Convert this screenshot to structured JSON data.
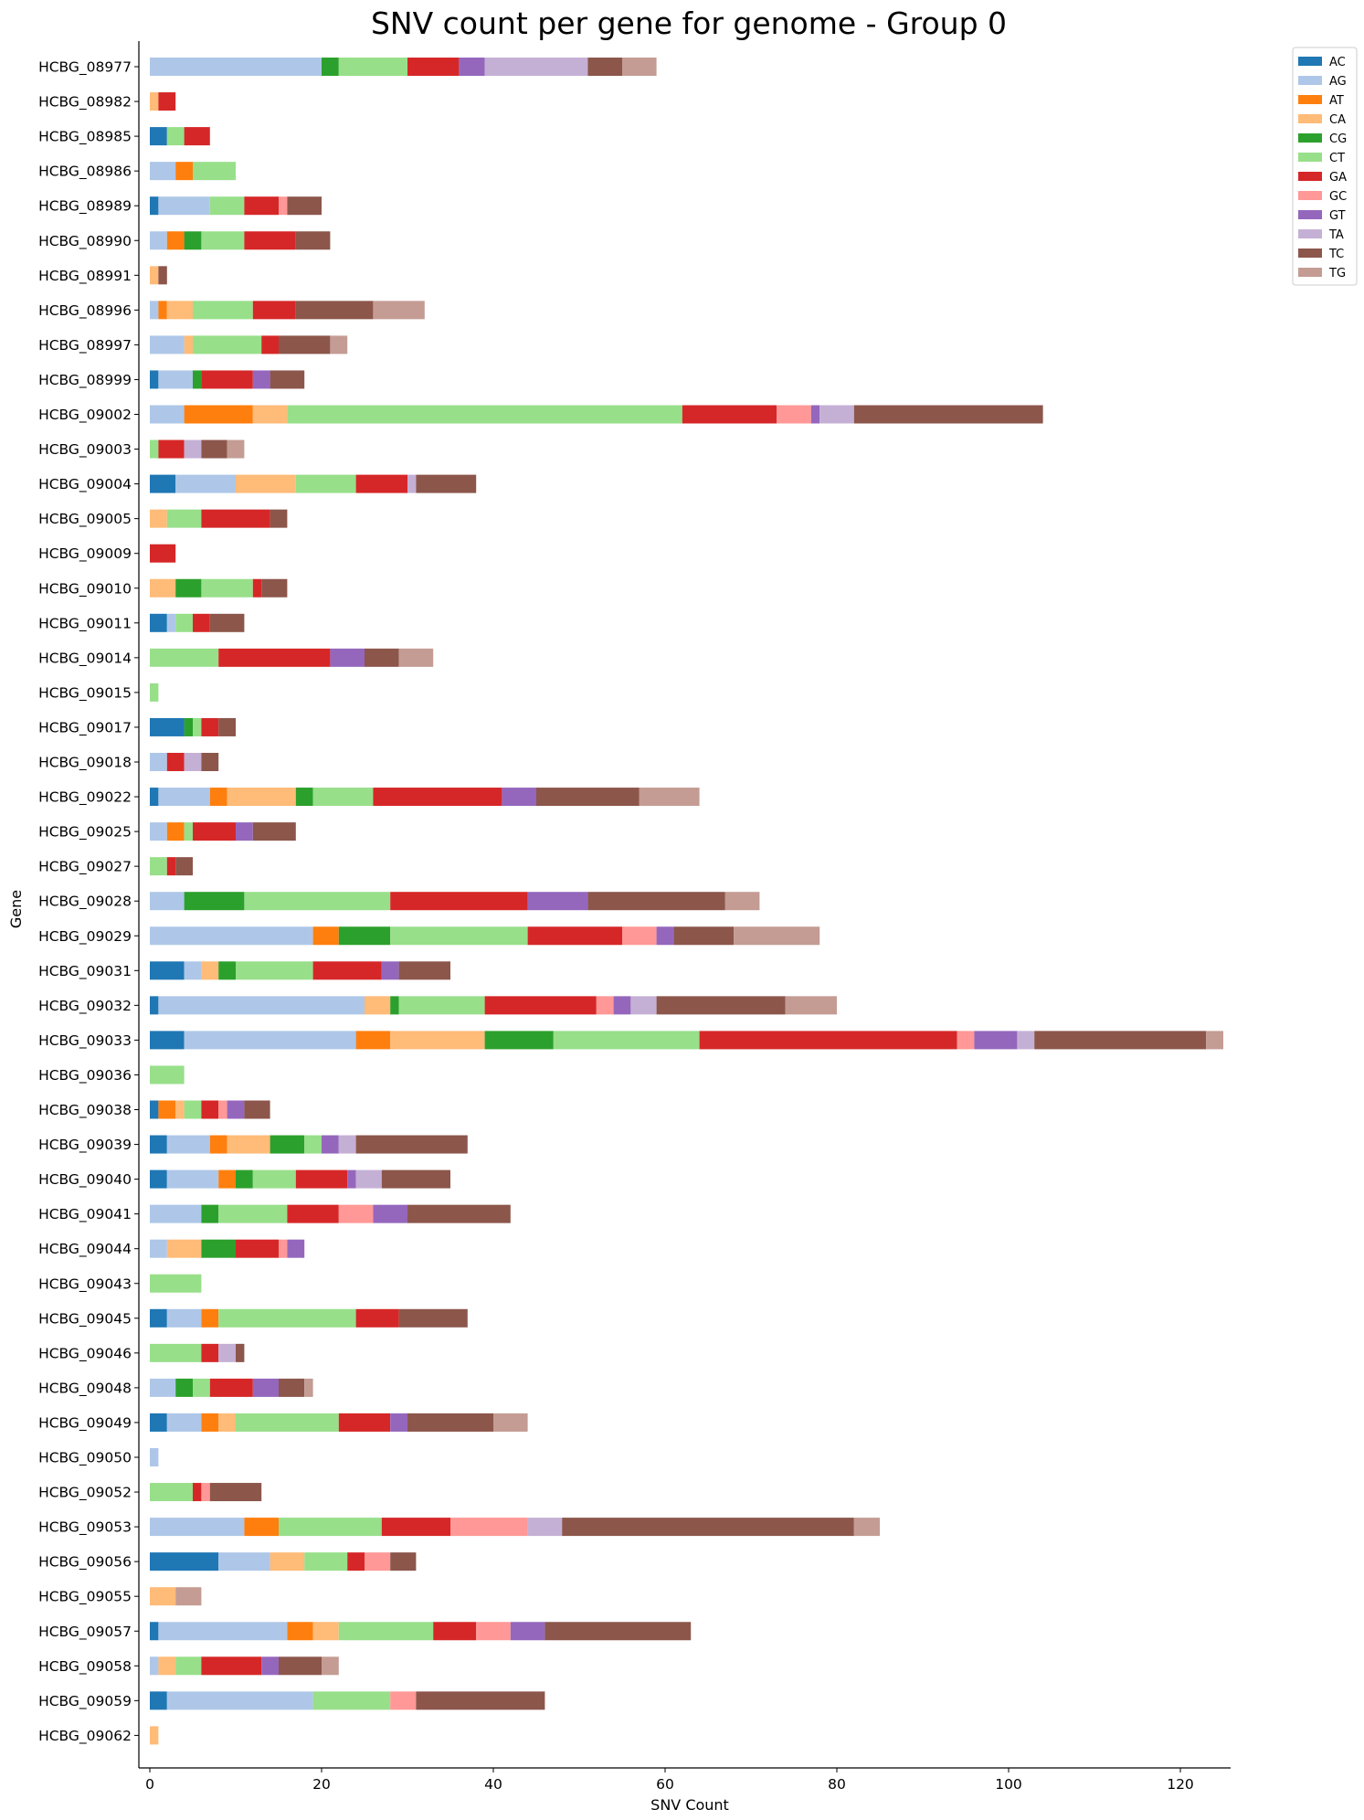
{
  "chart_data": {
    "type": "bar",
    "orientation": "horizontal",
    "stacked": true,
    "title": "SNV count per gene for genome - Group 0",
    "xlabel": "SNV Count",
    "ylabel": "Gene",
    "xlim": [
      0,
      126
    ],
    "xticks": [
      0,
      20,
      40,
      60,
      80,
      100,
      120
    ],
    "grid": false,
    "legend_position": "top-right",
    "categories": [
      "HCBG_08977",
      "HCBG_08982",
      "HCBG_08985",
      "HCBG_08986",
      "HCBG_08989",
      "HCBG_08990",
      "HCBG_08991",
      "HCBG_08996",
      "HCBG_08997",
      "HCBG_08999",
      "HCBG_09002",
      "HCBG_09003",
      "HCBG_09004",
      "HCBG_09005",
      "HCBG_09009",
      "HCBG_09010",
      "HCBG_09011",
      "HCBG_09014",
      "HCBG_09015",
      "HCBG_09017",
      "HCBG_09018",
      "HCBG_09022",
      "HCBG_09025",
      "HCBG_09027",
      "HCBG_09028",
      "HCBG_09029",
      "HCBG_09031",
      "HCBG_09032",
      "HCBG_09033",
      "HCBG_09036",
      "HCBG_09038",
      "HCBG_09039",
      "HCBG_09040",
      "HCBG_09041",
      "HCBG_09044",
      "HCBG_09043",
      "HCBG_09045",
      "HCBG_09046",
      "HCBG_09048",
      "HCBG_09049",
      "HCBG_09050",
      "HCBG_09052",
      "HCBG_09053",
      "HCBG_09056",
      "HCBG_09055",
      "HCBG_09057",
      "HCBG_09058",
      "HCBG_09059",
      "HCBG_09062"
    ],
    "series": [
      {
        "name": "AC",
        "color": "#1f77b4",
        "values": [
          0,
          0,
          2,
          0,
          1,
          0,
          0,
          0,
          0,
          1,
          0,
          0,
          3,
          0,
          0,
          0,
          2,
          0,
          0,
          4,
          0,
          1,
          0,
          0,
          0,
          0,
          4,
          1,
          4,
          0,
          1,
          2,
          2,
          0,
          0,
          0,
          2,
          0,
          0,
          2,
          0,
          0,
          0,
          8,
          0,
          1,
          0,
          2,
          0
        ]
      },
      {
        "name": "AG",
        "color": "#aec7e8",
        "values": [
          20,
          0,
          0,
          3,
          6,
          2,
          0,
          1,
          4,
          4,
          4,
          0,
          7,
          0,
          0,
          0,
          1,
          0,
          0,
          0,
          2,
          6,
          2,
          0,
          4,
          19,
          2,
          24,
          20,
          0,
          0,
          5,
          6,
          6,
          2,
          0,
          4,
          0,
          3,
          4,
          1,
          0,
          11,
          6,
          0,
          15,
          1,
          17,
          0
        ]
      },
      {
        "name": "AT",
        "color": "#ff7f0e",
        "values": [
          0,
          0,
          0,
          2,
          0,
          2,
          0,
          1,
          0,
          0,
          8,
          0,
          0,
          0,
          0,
          0,
          0,
          0,
          0,
          0,
          0,
          2,
          2,
          0,
          0,
          3,
          0,
          0,
          4,
          0,
          2,
          2,
          2,
          0,
          0,
          0,
          2,
          0,
          0,
          2,
          0,
          0,
          4,
          0,
          0,
          3,
          0,
          0,
          0
        ]
      },
      {
        "name": "CA",
        "color": "#ffbb78",
        "values": [
          0,
          1,
          0,
          0,
          0,
          0,
          1,
          3,
          1,
          0,
          4,
          0,
          7,
          2,
          0,
          3,
          0,
          0,
          0,
          0,
          0,
          8,
          0,
          0,
          0,
          0,
          2,
          3,
          11,
          0,
          1,
          5,
          0,
          0,
          4,
          0,
          0,
          0,
          0,
          2,
          0,
          0,
          0,
          4,
          3,
          3,
          2,
          0,
          1
        ]
      },
      {
        "name": "CG",
        "color": "#2ca02c",
        "values": [
          2,
          0,
          0,
          0,
          0,
          2,
          0,
          0,
          0,
          1,
          0,
          0,
          0,
          0,
          0,
          3,
          0,
          0,
          0,
          1,
          0,
          2,
          0,
          0,
          7,
          6,
          2,
          1,
          8,
          0,
          0,
          4,
          2,
          2,
          4,
          0,
          0,
          0,
          2,
          0,
          0,
          0,
          0,
          0,
          0,
          0,
          0,
          0,
          0
        ]
      },
      {
        "name": "CT",
        "color": "#98df8a",
        "values": [
          8,
          0,
          2,
          5,
          4,
          5,
          0,
          7,
          8,
          0,
          46,
          1,
          7,
          4,
          0,
          6,
          2,
          8,
          1,
          1,
          0,
          7,
          1,
          2,
          17,
          16,
          9,
          10,
          17,
          4,
          2,
          2,
          5,
          8,
          0,
          6,
          16,
          6,
          2,
          12,
          0,
          5,
          12,
          5,
          0,
          11,
          3,
          9,
          0
        ]
      },
      {
        "name": "GA",
        "color": "#d62728",
        "values": [
          6,
          2,
          3,
          0,
          4,
          6,
          0,
          5,
          2,
          6,
          11,
          3,
          6,
          8,
          3,
          1,
          2,
          13,
          0,
          2,
          2,
          15,
          5,
          1,
          16,
          11,
          8,
          13,
          30,
          0,
          2,
          0,
          6,
          6,
          5,
          0,
          5,
          2,
          5,
          6,
          0,
          1,
          8,
          2,
          0,
          5,
          7,
          0,
          0
        ]
      },
      {
        "name": "GC",
        "color": "#ff9896",
        "values": [
          0,
          0,
          0,
          0,
          1,
          0,
          0,
          0,
          0,
          0,
          4,
          0,
          0,
          0,
          0,
          0,
          0,
          0,
          0,
          0,
          0,
          0,
          0,
          0,
          0,
          4,
          0,
          2,
          2,
          0,
          1,
          0,
          0,
          4,
          1,
          0,
          0,
          0,
          0,
          0,
          0,
          1,
          9,
          3,
          0,
          4,
          0,
          3,
          0
        ]
      },
      {
        "name": "GT",
        "color": "#9467bd",
        "values": [
          3,
          0,
          0,
          0,
          0,
          0,
          0,
          0,
          0,
          2,
          1,
          0,
          0,
          0,
          0,
          0,
          0,
          4,
          0,
          0,
          0,
          4,
          2,
          0,
          7,
          2,
          2,
          2,
          5,
          0,
          2,
          2,
          1,
          4,
          2,
          0,
          0,
          0,
          3,
          2,
          0,
          0,
          0,
          0,
          0,
          4,
          2,
          0,
          0
        ]
      },
      {
        "name": "TA",
        "color": "#c5b0d5",
        "values": [
          12,
          0,
          0,
          0,
          0,
          0,
          0,
          0,
          0,
          0,
          4,
          2,
          1,
          0,
          0,
          0,
          0,
          0,
          0,
          0,
          2,
          0,
          0,
          0,
          0,
          0,
          0,
          3,
          2,
          0,
          0,
          2,
          3,
          0,
          0,
          0,
          0,
          2,
          0,
          0,
          0,
          0,
          4,
          0,
          0,
          0,
          0,
          0,
          0
        ]
      },
      {
        "name": "TC",
        "color": "#8c564b",
        "values": [
          4,
          0,
          0,
          0,
          4,
          4,
          1,
          9,
          6,
          4,
          22,
          3,
          7,
          2,
          0,
          3,
          4,
          4,
          0,
          2,
          2,
          12,
          5,
          2,
          16,
          7,
          6,
          15,
          20,
          0,
          3,
          13,
          8,
          12,
          0,
          0,
          8,
          1,
          3,
          10,
          0,
          6,
          34,
          3,
          0,
          17,
          5,
          15,
          0
        ]
      },
      {
        "name": "TG",
        "color": "#c49c94",
        "values": [
          4,
          0,
          0,
          0,
          0,
          0,
          0,
          6,
          2,
          0,
          0,
          2,
          0,
          0,
          0,
          0,
          0,
          4,
          0,
          0,
          0,
          7,
          0,
          0,
          4,
          10,
          0,
          6,
          2,
          0,
          0,
          0,
          0,
          0,
          0,
          0,
          0,
          0,
          1,
          4,
          0,
          0,
          3,
          0,
          3,
          0,
          2,
          0,
          0
        ]
      }
    ]
  }
}
